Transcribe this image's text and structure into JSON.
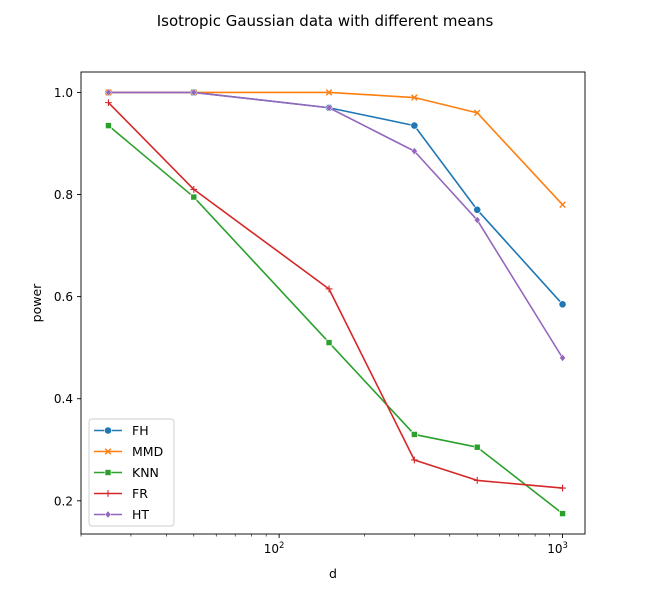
{
  "chart_data": {
    "type": "line",
    "title": "Isotropic Gaussian data with different means",
    "xlabel": "d",
    "ylabel": "power",
    "x_scale": "log",
    "x": [
      25,
      50,
      150,
      300,
      500,
      1000
    ],
    "xlim": [
      20,
      1200
    ],
    "ylim": [
      0.135,
      1.04
    ],
    "x_ticks": [
      {
        "value": 100,
        "base": "10",
        "exp": "2"
      },
      {
        "value": 1000,
        "base": "10",
        "exp": "3"
      }
    ],
    "y_ticks": [
      {
        "value": 0.2,
        "label": "0.2"
      },
      {
        "value": 0.4,
        "label": "0.4"
      },
      {
        "value": 0.6,
        "label": "0.6"
      },
      {
        "value": 0.8,
        "label": "0.8"
      },
      {
        "value": 1.0,
        "label": "1.0"
      }
    ],
    "grid": false,
    "legend_position": "lower-left",
    "series": [
      {
        "name": "FH",
        "color": "#1f77b4",
        "marker": "circle",
        "values": [
          1.0,
          1.0,
          0.97,
          0.935,
          0.77,
          0.585
        ]
      },
      {
        "name": "MMD",
        "color": "#ff7f0e",
        "marker": "x",
        "values": [
          1.0,
          1.0,
          1.0,
          0.99,
          0.96,
          0.78
        ]
      },
      {
        "name": "KNN",
        "color": "#2ca02c",
        "marker": "square",
        "values": [
          0.935,
          0.795,
          0.51,
          0.33,
          0.305,
          0.175
        ]
      },
      {
        "name": "FR",
        "color": "#d62728",
        "marker": "plus",
        "values": [
          0.98,
          0.81,
          0.615,
          0.28,
          0.24,
          0.225
        ]
      },
      {
        "name": "HT",
        "color": "#9467bd",
        "marker": "diamond",
        "values": [
          1.0,
          1.0,
          0.97,
          0.885,
          0.75,
          0.48
        ]
      }
    ]
  }
}
